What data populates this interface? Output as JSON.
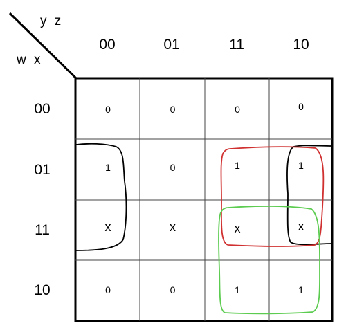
{
  "diagram": {
    "column_variables": "y z",
    "row_variables": "w x",
    "column_headers": [
      "00",
      "01",
      "11",
      "10"
    ],
    "row_headers": [
      "00",
      "01",
      "11",
      "10"
    ],
    "cells": [
      [
        "0",
        "0",
        "0",
        "0"
      ],
      [
        "1",
        "0",
        "1",
        "1"
      ],
      [
        "x",
        "x",
        "x",
        "x"
      ],
      [
        "0",
        "0",
        "1",
        "1"
      ]
    ],
    "groupings": [
      {
        "color": "#000000",
        "description": "wrap-around edge group"
      },
      {
        "color": "#d03030",
        "description": "center-right group"
      },
      {
        "color": "#5ccc50",
        "description": "bottom-right group"
      }
    ]
  }
}
